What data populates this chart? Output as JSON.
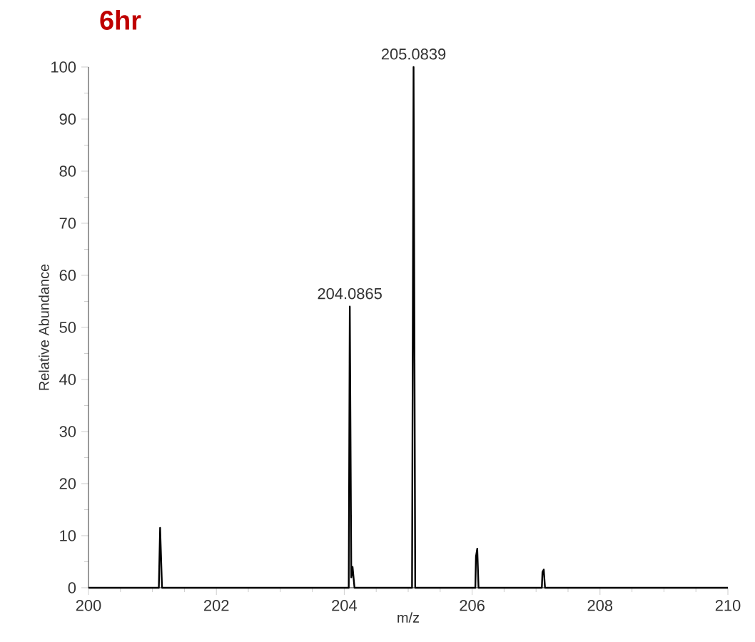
{
  "chart_data": {
    "type": "line",
    "title": "6hr",
    "xlabel": "m/z",
    "ylabel": "Relative Abundance",
    "x": [
      200,
      201.1,
      201.12,
      201.15,
      204.07,
      204.0865,
      204.11,
      204.13,
      204.16,
      205.06,
      205.0839,
      205.11,
      206.05,
      206.06,
      206.08,
      206.1,
      207.09,
      207.1,
      207.12,
      207.14,
      210
    ],
    "series": [
      {
        "color": "#000000",
        "values": [
          0,
          0,
          11.5,
          0,
          0,
          54,
          2,
          4,
          0,
          0,
          100,
          0,
          0,
          6,
          7.5,
          0,
          0,
          3,
          3.5,
          0,
          0
        ]
      }
    ],
    "xlim": [
      200,
      210
    ],
    "xticks": [
      200,
      202,
      204,
      206,
      208,
      210
    ],
    "ylim": [
      0,
      100
    ],
    "yticks": [
      0,
      10,
      20,
      30,
      40,
      50,
      60,
      70,
      80,
      90,
      100
    ],
    "annotations": [
      {
        "text": "204.0865",
        "x": 204.0865,
        "y": 54
      },
      {
        "text": "205.0839",
        "x": 205.0839,
        "y": 100
      }
    ],
    "grid": false,
    "legend": false,
    "marker": "none",
    "line_style": "solid"
  }
}
